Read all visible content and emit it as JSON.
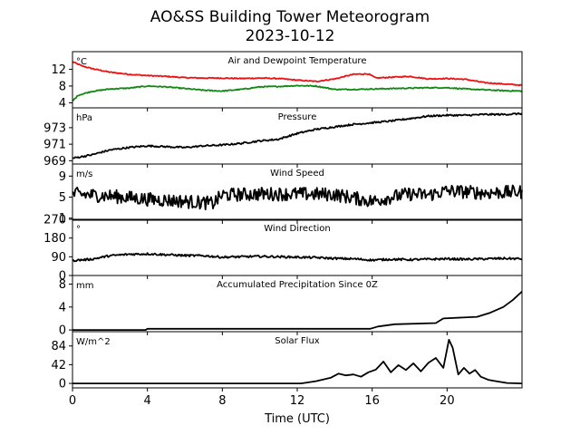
{
  "figure": {
    "title_line1": "AO&SS Building Tower Meteorogram",
    "title_line2": "2023-10-12",
    "xlabel": "Time (UTC)",
    "x_ticks": [
      0,
      4,
      8,
      12,
      16,
      20
    ],
    "x_range": [
      0,
      24
    ]
  },
  "colors": {
    "temperature": "#ee1111",
    "dewpoint": "#118811",
    "default": "#000000"
  },
  "chart_data": [
    {
      "type": "line",
      "title": "Air and Dewpoint Temperature",
      "unit": "°C",
      "ylim": [
        2.8,
        16.2
      ],
      "yticks": [
        4,
        8,
        12
      ],
      "noise": 0.12,
      "series": [
        {
          "color_key": "temperature",
          "x": [
            0,
            0.5,
            1,
            2,
            3,
            4,
            5,
            6,
            7,
            8,
            9,
            10,
            11,
            12,
            13,
            14,
            15,
            15.8,
            16.2,
            17,
            18,
            19,
            20,
            21,
            22,
            23,
            24
          ],
          "values": [
            13.8,
            12.8,
            12.2,
            11.3,
            10.8,
            10.5,
            10.3,
            10.0,
            9.9,
            9.9,
            9.8,
            9.9,
            9.8,
            9.4,
            9.1,
            9.7,
            10.8,
            10.9,
            9.9,
            10.1,
            10.3,
            9.7,
            9.8,
            9.6,
            8.8,
            8.5,
            8.2
          ]
        },
        {
          "color_key": "dewpoint",
          "x": [
            0,
            0.3,
            1,
            2,
            3,
            4,
            5,
            6,
            7,
            8,
            9,
            10,
            11,
            12,
            13,
            14,
            15,
            16,
            17,
            18,
            19,
            20,
            21,
            22,
            23,
            24
          ],
          "values": [
            4.4,
            5.8,
            6.7,
            7.3,
            7.5,
            8.0,
            7.8,
            7.4,
            7.0,
            6.8,
            7.2,
            7.8,
            7.9,
            8.1,
            8.0,
            7.2,
            7.2,
            7.3,
            7.4,
            7.5,
            7.6,
            7.6,
            7.3,
            7.1,
            6.9,
            6.8
          ]
        }
      ]
    },
    {
      "type": "line",
      "title": "Pressure",
      "unit": "hPa",
      "ylim": [
        968.6,
        975.4
      ],
      "yticks": [
        969,
        971,
        973
      ],
      "noise": 0.1,
      "series": [
        {
          "color_key": "default",
          "x": [
            0,
            1,
            2,
            3,
            4,
            5,
            6,
            7,
            8,
            9,
            10,
            11,
            12,
            13,
            14,
            15,
            16,
            17,
            18,
            19,
            20,
            21,
            22,
            23,
            24
          ],
          "values": [
            969.3,
            969.7,
            970.3,
            970.6,
            970.8,
            970.7,
            970.6,
            970.8,
            970.9,
            971.1,
            971.4,
            971.6,
            972.3,
            972.8,
            973.1,
            973.4,
            973.6,
            973.8,
            974.1,
            974.4,
            974.5,
            974.5,
            974.6,
            974.6,
            974.7
          ]
        }
      ]
    },
    {
      "type": "line",
      "title": "Wind Speed",
      "unit": "m/s",
      "ylim": [
        0.6,
        11.3
      ],
      "yticks": [
        1,
        5,
        9
      ],
      "noise": 1.3,
      "series": [
        {
          "color_key": "default",
          "x": [
            0,
            2,
            4,
            6,
            7.5,
            8,
            9,
            10,
            12,
            14,
            16,
            17,
            18,
            19,
            20,
            22,
            24
          ],
          "values": [
            5.6,
            5.2,
            4.6,
            4.2,
            3.8,
            5.4,
            5.5,
            5.6,
            5.6,
            5.5,
            4.2,
            5.0,
            5.6,
            5.4,
            6.2,
            5.8,
            6.0
          ]
        }
      ]
    },
    {
      "type": "line",
      "title": "Wind Direction",
      "unit": "°",
      "ylim": [
        0,
        270
      ],
      "yticks": [
        0,
        90,
        180,
        270
      ],
      "noise": 5,
      "series": [
        {
          "color_key": "default",
          "x": [
            0,
            1,
            2,
            3,
            4,
            5,
            6,
            7,
            8,
            9,
            10,
            11,
            12,
            13,
            14,
            15,
            16,
            17,
            18,
            19,
            20,
            21,
            22,
            23,
            24
          ],
          "values": [
            72,
            78,
            95,
            102,
            104,
            100,
            96,
            95,
            88,
            90,
            92,
            90,
            88,
            86,
            82,
            80,
            74,
            78,
            76,
            78,
            80,
            78,
            80,
            82,
            80
          ]
        }
      ]
    },
    {
      "type": "line",
      "title": "Accumulated Precipitation Since 0Z",
      "unit": "mm",
      "ylim": [
        -0.3,
        9.5
      ],
      "yticks": [
        0,
        4,
        8
      ],
      "noise": 0,
      "series": [
        {
          "color_key": "default",
          "x": [
            0,
            3.9,
            4.0,
            15.9,
            16.3,
            17.2,
            19.4,
            19.8,
            21.6,
            22.3,
            23.0,
            23.5,
            24
          ],
          "values": [
            0,
            0,
            0.2,
            0.2,
            0.6,
            1.0,
            1.2,
            2.0,
            2.3,
            3.0,
            4.0,
            5.2,
            6.7
          ]
        }
      ]
    },
    {
      "type": "line",
      "title": "Solar Flux",
      "unit": "W/m^2",
      "ylim": [
        -10,
        116
      ],
      "yticks": [
        0,
        42,
        84
      ],
      "noise": 0,
      "series": [
        {
          "color_key": "default",
          "x": [
            0,
            12.2,
            13,
            13.8,
            14.2,
            14.6,
            15,
            15.4,
            15.8,
            16.2,
            16.6,
            17,
            17.4,
            17.8,
            18.2,
            18.6,
            19,
            19.4,
            19.8,
            20.1,
            20.3,
            20.6,
            20.9,
            21.2,
            21.5,
            21.8,
            22.2,
            22.6,
            23.2,
            24
          ],
          "values": [
            0,
            0,
            5,
            13,
            22,
            18,
            20,
            15,
            25,
            31,
            49,
            25,
            41,
            30,
            45,
            27,
            46,
            57,
            35,
            98,
            80,
            20,
            35,
            22,
            30,
            15,
            8,
            5,
            1,
            0
          ]
        }
      ]
    }
  ]
}
